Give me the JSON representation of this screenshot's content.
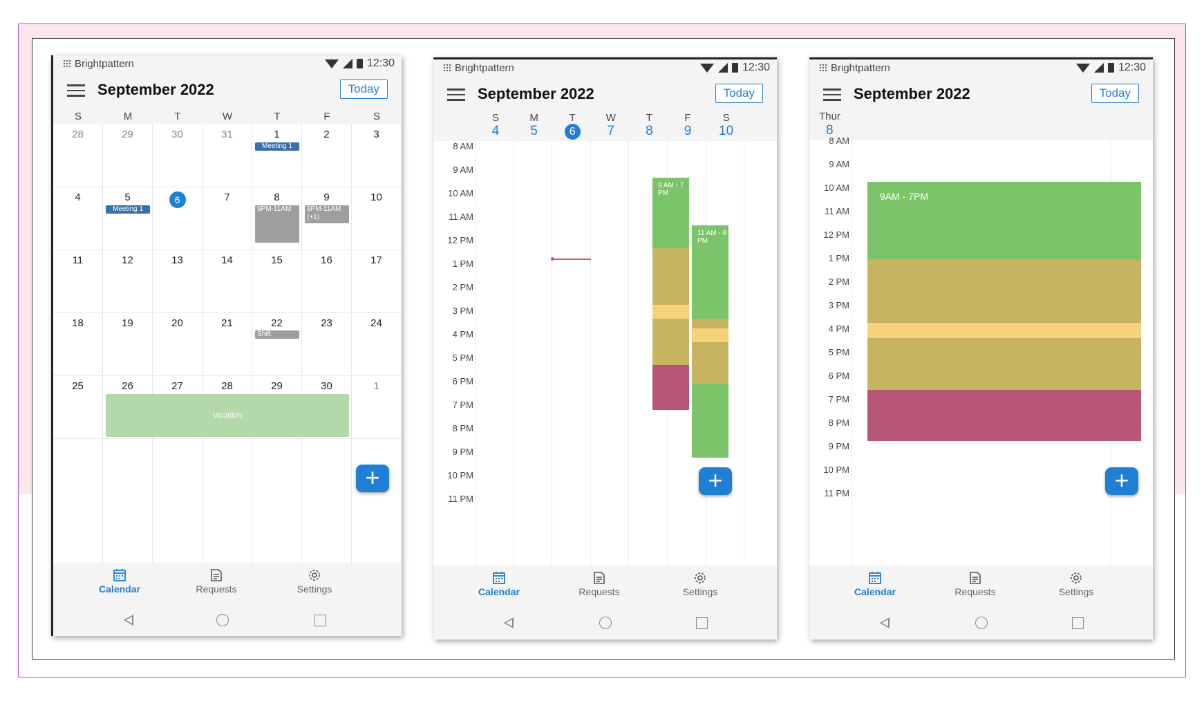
{
  "app_name": "Brightpattern",
  "status_time": "12:30",
  "month_title": "September 2022",
  "today_label": "Today",
  "colors": {
    "accent": "#1f7fd4",
    "shift_green": "#7bc46a",
    "shift_olive": "#c6b463",
    "shift_yellow": "#f6d27b",
    "shift_maroon": "#b95678",
    "vacation": "#b3d8a9",
    "meeting": "#3a6fa8",
    "grey_event": "#9e9e9e"
  },
  "month_view": {
    "weekday_headers": [
      "S",
      "M",
      "T",
      "W",
      "T",
      "F",
      "S"
    ],
    "weeks": [
      [
        "28",
        "29",
        "30",
        "31",
        "1",
        "2",
        "3"
      ],
      [
        "4",
        "5",
        "6",
        "7",
        "8",
        "9",
        "10"
      ],
      [
        "11",
        "12",
        "13",
        "14",
        "15",
        "16",
        "17"
      ],
      [
        "18",
        "19",
        "20",
        "21",
        "22",
        "23",
        "24"
      ],
      [
        "25",
        "26",
        "27",
        "28",
        "29",
        "30",
        "1"
      ]
    ],
    "events": {
      "meeting_1a": "Meeting 1",
      "meeting_1b": "Meeting 1",
      "event_8": "9PM-11AM",
      "event_9": "9PM-11AM (+1)",
      "shift": "Shift",
      "vacation": "Vacation"
    }
  },
  "week_view": {
    "days": [
      {
        "letter": "S",
        "num": "4"
      },
      {
        "letter": "M",
        "num": "5"
      },
      {
        "letter": "T",
        "num": "6"
      },
      {
        "letter": "W",
        "num": "7"
      },
      {
        "letter": "T",
        "num": "8"
      },
      {
        "letter": "F",
        "num": "9"
      },
      {
        "letter": "S",
        "num": "10"
      }
    ],
    "event_thu": "9 AM - 7 PM",
    "event_fri": "11 AM - 8 PM"
  },
  "day_view": {
    "day_label": "Thur",
    "day_num": "8",
    "event": "9AM - 7PM"
  },
  "hours": [
    "8 AM",
    "9 AM",
    "10 AM",
    "11 AM",
    "12 PM",
    "1 PM",
    "2 PM",
    "3 PM",
    "4 PM",
    "5 PM",
    "6 PM",
    "7 PM",
    "8 PM",
    "9 PM",
    "10 PM",
    "11 PM"
  ],
  "nav": {
    "calendar": "Calendar",
    "requests": "Requests",
    "settings": "Settings"
  },
  "icons": {
    "calendar": "calendar-icon",
    "requests": "document-icon",
    "settings": "gear-icon",
    "fab": "plus-icon",
    "menu": "hamburger-icon"
  }
}
